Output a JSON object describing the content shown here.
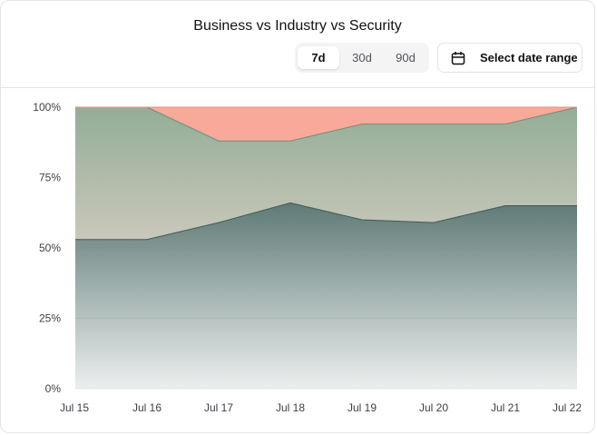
{
  "header": {
    "title": "Business vs Industry vs Security",
    "tabs": [
      {
        "label": "7d",
        "active": true
      },
      {
        "label": "30d",
        "active": false
      },
      {
        "label": "90d",
        "active": false
      }
    ],
    "date_button": {
      "label": "Select date range",
      "icon": "calendar-icon"
    }
  },
  "colors": {
    "business": "#5f7a76",
    "industry": "#93ad96",
    "security": "#f9a99a"
  },
  "chart_data": {
    "type": "area",
    "stacked": true,
    "percent": true,
    "x": [
      "Jul 15",
      "Jul 16",
      "Jul 17",
      "Jul 18",
      "Jul 19",
      "Jul 20",
      "Jul 21",
      "Jul 22"
    ],
    "series": [
      {
        "values": [
          53,
          53,
          59,
          66,
          60,
          59,
          65,
          65
        ]
      },
      {
        "values": [
          47,
          47,
          29,
          22,
          34,
          35,
          29,
          35
        ]
      },
      {
        "values": [
          0,
          0,
          12,
          12,
          6,
          6,
          6,
          0
        ]
      }
    ],
    "y_ticks": [
      "0%",
      "25%",
      "50%",
      "75%",
      "100%"
    ],
    "ylim": [
      0,
      100
    ],
    "grid": true,
    "legend": "none"
  }
}
